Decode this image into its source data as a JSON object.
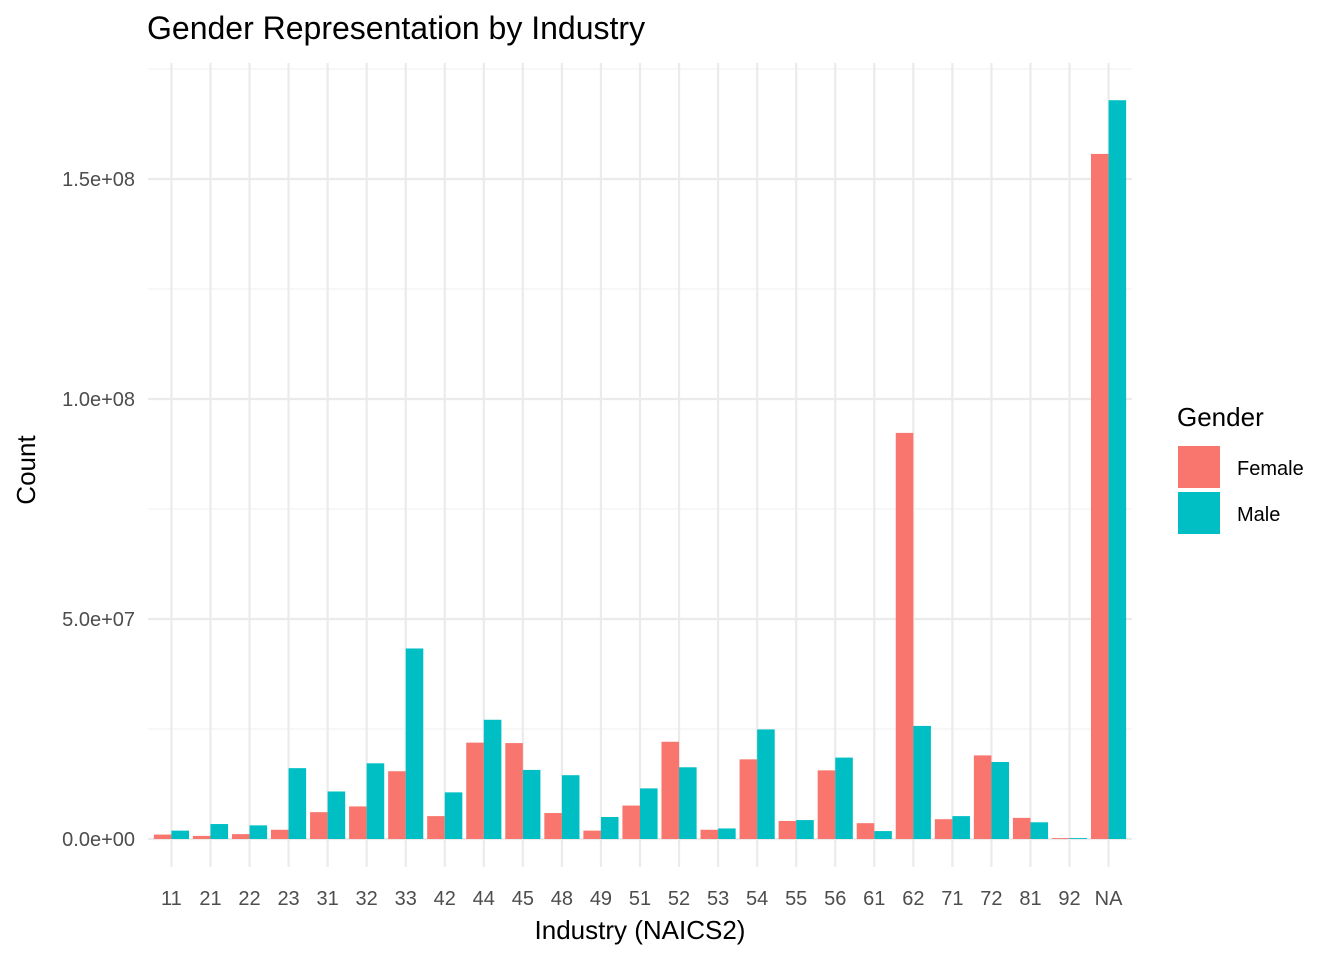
{
  "chart_data": {
    "type": "bar",
    "title": "Gender Representation by Industry",
    "xlabel": "Industry (NAICS2)",
    "ylabel": "Count",
    "categories": [
      "11",
      "21",
      "22",
      "23",
      "31",
      "32",
      "33",
      "42",
      "44",
      "45",
      "48",
      "49",
      "51",
      "52",
      "53",
      "54",
      "55",
      "56",
      "61",
      "62",
      "71",
      "72",
      "81",
      "92",
      "NA"
    ],
    "series": [
      {
        "name": "Female",
        "color": "#F8766D",
        "values": [
          1000000,
          700000,
          1100000,
          2100000,
          6100000,
          7400000,
          15400000,
          5200000,
          21900000,
          21800000,
          5900000,
          1900000,
          7600000,
          22100000,
          2100000,
          18100000,
          4100000,
          15600000,
          3600000,
          92300000,
          4500000,
          19000000,
          4800000,
          200000,
          155700000
        ]
      },
      {
        "name": "Male",
        "color": "#00BFC4",
        "values": [
          1900000,
          3400000,
          3100000,
          16100000,
          10800000,
          17200000,
          43300000,
          10600000,
          27100000,
          15700000,
          14500000,
          5000000,
          11500000,
          16300000,
          2400000,
          24900000,
          4300000,
          18500000,
          1800000,
          25700000,
          5200000,
          17500000,
          3800000,
          200000,
          167900000
        ]
      }
    ],
    "ylim": [
      -7500000,
      175000000
    ],
    "yticks": [
      {
        "value": 0,
        "label": "0.0e+00"
      },
      {
        "value": 50000000,
        "label": "5.0e+07"
      },
      {
        "value": 100000000,
        "label": "1.0e+08"
      },
      {
        "value": 150000000,
        "label": "1.5e+08"
      }
    ],
    "y_minor_ticks": [
      25000000,
      75000000,
      125000000,
      175000000
    ],
    "grid": true,
    "legend": {
      "title": "Gender",
      "position": "right",
      "entries": [
        {
          "label": "Female",
          "color": "#F8766D"
        },
        {
          "label": "Male",
          "color": "#00BFC4"
        }
      ]
    }
  }
}
